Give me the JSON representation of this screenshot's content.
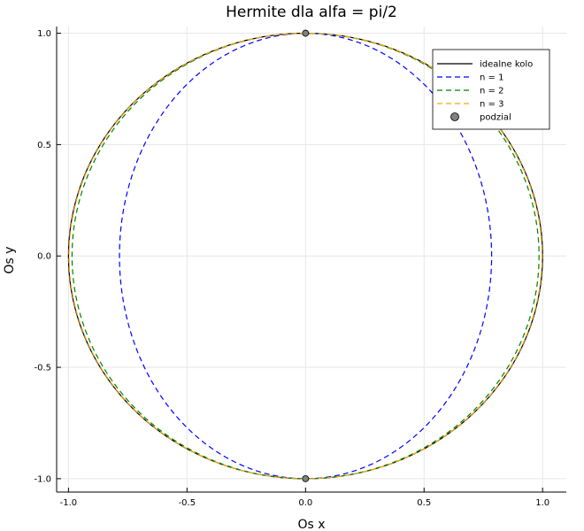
{
  "chart_data": {
    "type": "line",
    "title": "Hermite dla alfa = pi/2",
    "xlabel": "Os x",
    "ylabel": "Os y",
    "xlim": [
      -1.05,
      1.1
    ],
    "ylim": [
      -1.06,
      1.03
    ],
    "xticks": [
      -1.0,
      -0.5,
      0.0,
      0.5,
      1.0
    ],
    "xtick_labels": [
      "-1.0",
      "-0.5",
      "0.0",
      "0.5",
      "1.0"
    ],
    "yticks": [
      -1.0,
      -0.5,
      0.0,
      0.5,
      1.0
    ],
    "ytick_labels": [
      "-1.0",
      "-0.5",
      "0.0",
      "0.5",
      "1.0"
    ],
    "grid": true,
    "legend_position": "top-right",
    "series": [
      {
        "name": "idealne kolo",
        "kind": "circle",
        "radius_x_right": 1.0,
        "radius_x_left": 1.0,
        "color": "#000000",
        "dash": "solid"
      },
      {
        "name": "n = 1",
        "kind": "ellipse",
        "radius_x_right": 0.785,
        "radius_x_left": 0.785,
        "color": "#0000ff",
        "dash": "dashed"
      },
      {
        "name": "n = 2",
        "kind": "ellipse",
        "radius_x_right": 0.985,
        "radius_x_left": 0.985,
        "color": "#008000",
        "dash": "dashed"
      },
      {
        "name": "n = 3",
        "kind": "ellipse",
        "radius_x_right": 0.998,
        "radius_x_left": 0.998,
        "color": "#ffa500",
        "dash": "dashed"
      }
    ],
    "points": {
      "name": "podzial",
      "x": [
        0.0,
        0.0
      ],
      "y": [
        1.0,
        -1.0
      ],
      "color": "#808080"
    }
  }
}
